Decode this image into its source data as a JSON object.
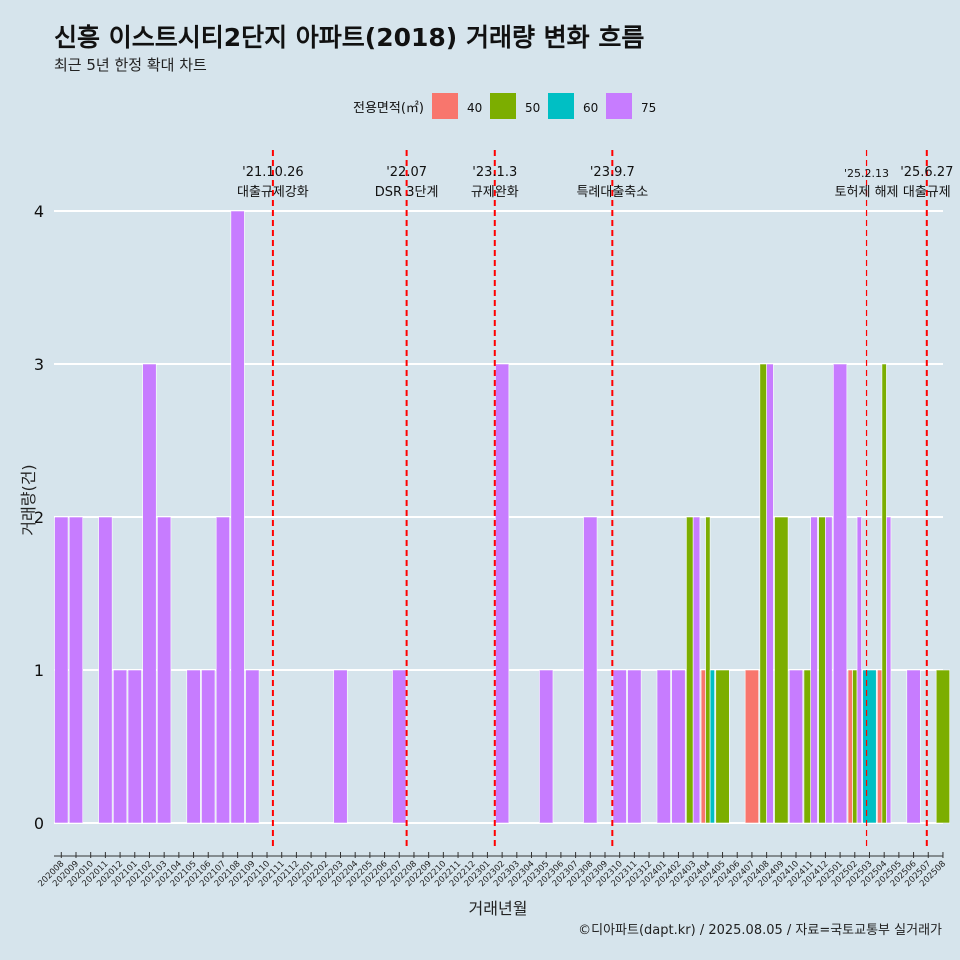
{
  "title": "신흥 이스트시티2단지 아파트(2018) 거래량 변화 흐름",
  "subtitle": "최근 5년 한정 확대 차트",
  "caption": "©디아파트(dapt.kr) / 2025.08.05 / 자료=국토교통부 실거래가",
  "colors": {
    "40": "#f8766d",
    "50": "#7cae00",
    "60": "#00bfc4",
    "75": "#c77cff",
    "grid": "#ffffff",
    "event": "#ff0000",
    "background": "#d6e4ec"
  },
  "chart_data": {
    "type": "bar",
    "xlabel": "거래년월",
    "ylabel": "거래량(건)",
    "ylim": [
      0,
      4
    ],
    "yticks": [
      0,
      1,
      2,
      3,
      4
    ],
    "legend": {
      "title": "전용면적(㎡)",
      "position": "top"
    },
    "categories": [
      "202008",
      "202009",
      "202010",
      "202011",
      "202012",
      "202101",
      "202102",
      "202103",
      "202104",
      "202105",
      "202106",
      "202107",
      "202108",
      "202109",
      "202110",
      "202111",
      "202112",
      "202201",
      "202202",
      "202203",
      "202204",
      "202205",
      "202206",
      "202207",
      "202208",
      "202209",
      "202210",
      "202211",
      "202212",
      "202301",
      "202302",
      "202303",
      "202304",
      "202305",
      "202306",
      "202307",
      "202308",
      "202309",
      "202310",
      "202311",
      "202312",
      "202401",
      "202402",
      "202403",
      "202404",
      "202405",
      "202406",
      "202407",
      "202408",
      "202409",
      "202410",
      "202411",
      "202412",
      "202501",
      "202502",
      "202503",
      "202504",
      "202505",
      "202506",
      "202507",
      "202508"
    ],
    "series": [
      {
        "name": "40",
        "values": [
          0,
          0,
          0,
          0,
          0,
          0,
          0,
          0,
          0,
          0,
          0,
          0,
          0,
          0,
          0,
          0,
          0,
          0,
          0,
          0,
          0,
          0,
          0,
          0,
          0,
          0,
          0,
          0,
          0,
          0,
          0,
          0,
          0,
          0,
          0,
          0,
          0,
          0,
          0,
          0,
          0,
          0,
          0,
          0,
          1,
          0,
          0,
          1,
          0,
          0,
          0,
          0,
          0,
          0,
          1,
          0,
          1,
          0,
          0,
          0,
          0
        ]
      },
      {
        "name": "50",
        "values": [
          0,
          0,
          0,
          0,
          0,
          0,
          0,
          0,
          0,
          0,
          0,
          0,
          0,
          0,
          0,
          0,
          0,
          0,
          0,
          0,
          0,
          0,
          0,
          0,
          0,
          0,
          0,
          0,
          0,
          0,
          0,
          0,
          0,
          0,
          0,
          0,
          0,
          0,
          0,
          0,
          0,
          0,
          0,
          2,
          2,
          1,
          0,
          0,
          3,
          2,
          0,
          1,
          2,
          0,
          1,
          0,
          3,
          0,
          0,
          0,
          1
        ]
      },
      {
        "name": "60",
        "values": [
          0,
          0,
          0,
          0,
          0,
          0,
          0,
          0,
          0,
          0,
          0,
          0,
          0,
          0,
          0,
          0,
          0,
          0,
          0,
          0,
          0,
          0,
          0,
          0,
          0,
          0,
          0,
          0,
          0,
          0,
          0,
          0,
          0,
          0,
          0,
          0,
          0,
          0,
          0,
          0,
          0,
          0,
          0,
          0,
          1,
          0,
          0,
          0,
          0,
          0,
          0,
          0,
          0,
          0,
          0,
          1,
          0,
          0,
          0,
          0,
          0
        ]
      },
      {
        "name": "75",
        "values": [
          2,
          2,
          0,
          2,
          1,
          1,
          3,
          2,
          0,
          1,
          1,
          2,
          4,
          1,
          0,
          0,
          0,
          0,
          0,
          1,
          0,
          0,
          0,
          1,
          0,
          0,
          0,
          0,
          0,
          0,
          3,
          0,
          0,
          1,
          0,
          0,
          2,
          0,
          1,
          1,
          0,
          1,
          1,
          2,
          0,
          0,
          0,
          0,
          3,
          0,
          1,
          2,
          2,
          3,
          2,
          0,
          2,
          0,
          1,
          0,
          0
        ]
      }
    ],
    "events": [
      {
        "index": 14.4,
        "date": "'21.10.26",
        "label": "대출규제강화"
      },
      {
        "index": 23.5,
        "date": "'22.07",
        "label": "DSR 3단계"
      },
      {
        "index": 29.5,
        "date": "'23.1.3",
        "label": "규제완화"
      },
      {
        "index": 37.5,
        "date": "'23.9.7",
        "label": "특례대출축소"
      },
      {
        "index": 54.8,
        "date": "'25.2.13",
        "label": "토허제 해제"
      },
      {
        "index": 58.9,
        "date": "'25.6.27",
        "label": "대출규제"
      }
    ]
  }
}
